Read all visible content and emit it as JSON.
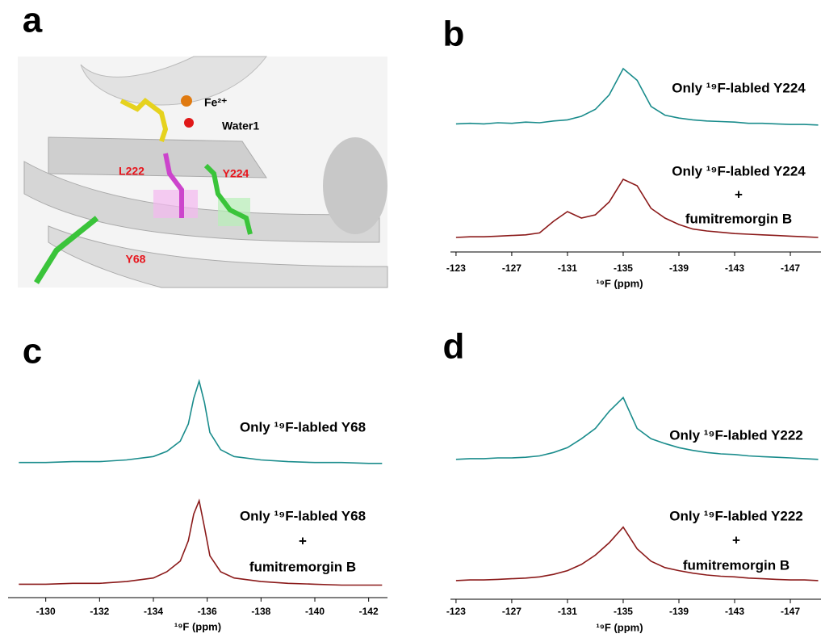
{
  "figure": {
    "panels": [
      "a",
      "b",
      "c",
      "d"
    ],
    "structure_labels": [
      {
        "text": "Fe²⁺",
        "color": "#000000"
      },
      {
        "text": "Water1",
        "color": "#000000"
      },
      {
        "text": "L222",
        "color": "#e8141c"
      },
      {
        "text": "Y224",
        "color": "#e8141c"
      },
      {
        "text": "Y68",
        "color": "#e8141c"
      }
    ]
  },
  "chart_data": [
    {
      "type": "line",
      "xlabel": "¹⁹F (ppm)",
      "xlim": [
        -122.6,
        -149.2
      ],
      "ylim": [
        0,
        1
      ],
      "xticks": [
        -123,
        -127,
        -131,
        -135,
        -139,
        -143,
        -147
      ],
      "x": [
        -123,
        -124,
        -125,
        -126,
        -127,
        -128,
        -129,
        -130,
        -131,
        -132,
        -133,
        -134,
        -135,
        -136,
        -137,
        -138,
        -139,
        -140,
        -141,
        -142,
        -143,
        -144,
        -145,
        -146,
        -147,
        -148,
        -149
      ],
      "series": [
        {
          "label_lines": [
            "Only ¹⁹F-labled Y224"
          ],
          "color": "#1a8c8c",
          "values": [
            0.05,
            0.06,
            0.05,
            0.07,
            0.06,
            0.08,
            0.07,
            0.1,
            0.12,
            0.18,
            0.3,
            0.55,
            1.0,
            0.8,
            0.35,
            0.2,
            0.15,
            0.12,
            0.1,
            0.09,
            0.08,
            0.06,
            0.06,
            0.05,
            0.04,
            0.04,
            0.03
          ]
        },
        {
          "label_lines": [
            "Only ¹⁹F-labled Y224",
            "+",
            "fumitremorgin B"
          ],
          "color": "#8b1a1a",
          "values": [
            0.05,
            0.06,
            0.06,
            0.07,
            0.08,
            0.09,
            0.12,
            0.3,
            0.45,
            0.35,
            0.4,
            0.6,
            0.95,
            0.85,
            0.5,
            0.35,
            0.25,
            0.18,
            0.15,
            0.13,
            0.11,
            0.1,
            0.09,
            0.08,
            0.07,
            0.06,
            0.05
          ]
        }
      ]
    },
    {
      "type": "line",
      "xlabel": "¹⁹F (ppm)",
      "xlim": [
        -128.6,
        -142.7
      ],
      "ylim": [
        0,
        1
      ],
      "xticks": [
        -130,
        -132,
        -134,
        -136,
        -138,
        -140,
        -142
      ],
      "x": [
        -129,
        -130,
        -131,
        -132,
        -133,
        -134,
        -134.5,
        -135,
        -135.3,
        -135.5,
        -135.7,
        -135.9,
        -136.1,
        -136.5,
        -137,
        -138,
        -139,
        -140,
        -141,
        -142,
        -142.5
      ],
      "series": [
        {
          "label_lines": [
            "Only ¹⁹F-labled Y68"
          ],
          "color": "#1a8c8c",
          "values": [
            0.05,
            0.05,
            0.06,
            0.06,
            0.08,
            0.12,
            0.18,
            0.3,
            0.5,
            0.8,
            1.0,
            0.75,
            0.4,
            0.2,
            0.12,
            0.08,
            0.06,
            0.05,
            0.05,
            0.04,
            0.04
          ]
        },
        {
          "label_lines": [
            "Only ¹⁹F-labled Y68",
            "+",
            "fumitremorgin B"
          ],
          "color": "#8b1a1a",
          "values": [
            0.06,
            0.06,
            0.07,
            0.07,
            0.09,
            0.13,
            0.2,
            0.32,
            0.55,
            0.85,
            1.0,
            0.7,
            0.38,
            0.2,
            0.13,
            0.09,
            0.07,
            0.06,
            0.05,
            0.05,
            0.05
          ]
        }
      ]
    },
    {
      "type": "line",
      "xlabel": "¹⁹F (ppm)",
      "xlim": [
        -122.6,
        -149.2
      ],
      "ylim": [
        0,
        1
      ],
      "xticks": [
        -123,
        -127,
        -131,
        -135,
        -139,
        -143,
        -147
      ],
      "x": [
        -123,
        -124,
        -125,
        -126,
        -127,
        -128,
        -129,
        -130,
        -131,
        -132,
        -133,
        -134,
        -135,
        -136,
        -137,
        -138,
        -139,
        -140,
        -141,
        -142,
        -143,
        -144,
        -145,
        -146,
        -147,
        -148,
        -149
      ],
      "series": [
        {
          "label_lines": [
            "Only ¹⁹F-labled Y222"
          ],
          "color": "#1a8c8c",
          "values": [
            0.05,
            0.06,
            0.06,
            0.07,
            0.07,
            0.08,
            0.1,
            0.15,
            0.22,
            0.35,
            0.5,
            0.75,
            0.95,
            0.5,
            0.35,
            0.28,
            0.22,
            0.18,
            0.15,
            0.13,
            0.12,
            0.1,
            0.09,
            0.08,
            0.07,
            0.06,
            0.05
          ]
        },
        {
          "label_lines": [
            "Only ¹⁹F-labled Y222",
            "+",
            "fumitremorgin B"
          ],
          "color": "#8b1a1a",
          "values": [
            0.04,
            0.05,
            0.05,
            0.06,
            0.07,
            0.08,
            0.1,
            0.14,
            0.2,
            0.3,
            0.45,
            0.65,
            0.9,
            0.55,
            0.35,
            0.25,
            0.2,
            0.16,
            0.13,
            0.11,
            0.1,
            0.08,
            0.07,
            0.06,
            0.05,
            0.05,
            0.04
          ]
        }
      ]
    }
  ]
}
